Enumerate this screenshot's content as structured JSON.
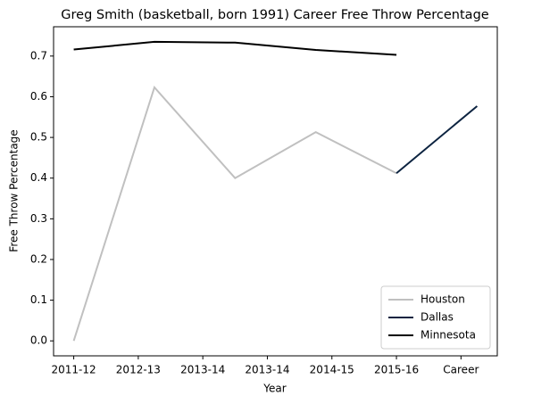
{
  "chart_data": {
    "type": "line",
    "title": "Greg Smith (basketball, born 1991) Career Free Throw Percentage",
    "x_label": "Year",
    "y_label": "Free Throw Percentage",
    "x": [
      0,
      1,
      2,
      3,
      4,
      5
    ],
    "xlim": [
      -0.25,
      5.25
    ],
    "xticks": [
      {
        "value": 0,
        "label": "2011-12"
      },
      {
        "value": 0.8,
        "label": "2012-13"
      },
      {
        "value": 1.6,
        "label": "2013-14"
      },
      {
        "value": 2.4,
        "label": "2013-14"
      },
      {
        "value": 3.2,
        "label": "2014-15"
      },
      {
        "value": 4.0,
        "label": "2015-16"
      },
      {
        "value": 4.8,
        "label": "Career"
      }
    ],
    "ylim": [
      -0.0368,
      0.772
    ],
    "yticks": [
      {
        "value": 0,
        "label": "0.0"
      },
      0.1,
      0.2,
      0.3,
      0.4,
      0.5,
      0.6,
      0.7
    ],
    "legend": "lower right",
    "series": [
      {
        "name": "Houston",
        "color": "#c0c0c0",
        "values": [
          0,
          0.623,
          0.4,
          0.513,
          0.412,
          null
        ]
      },
      {
        "name": "Dallas",
        "color": "#0c2340",
        "values": [
          null,
          null,
          null,
          null,
          0.412,
          0.577
        ]
      },
      {
        "name": "Minnesota",
        "color": "#000000",
        "values": [
          0.716,
          0.735,
          0.733,
          0.715,
          0.703,
          null
        ]
      }
    ]
  }
}
